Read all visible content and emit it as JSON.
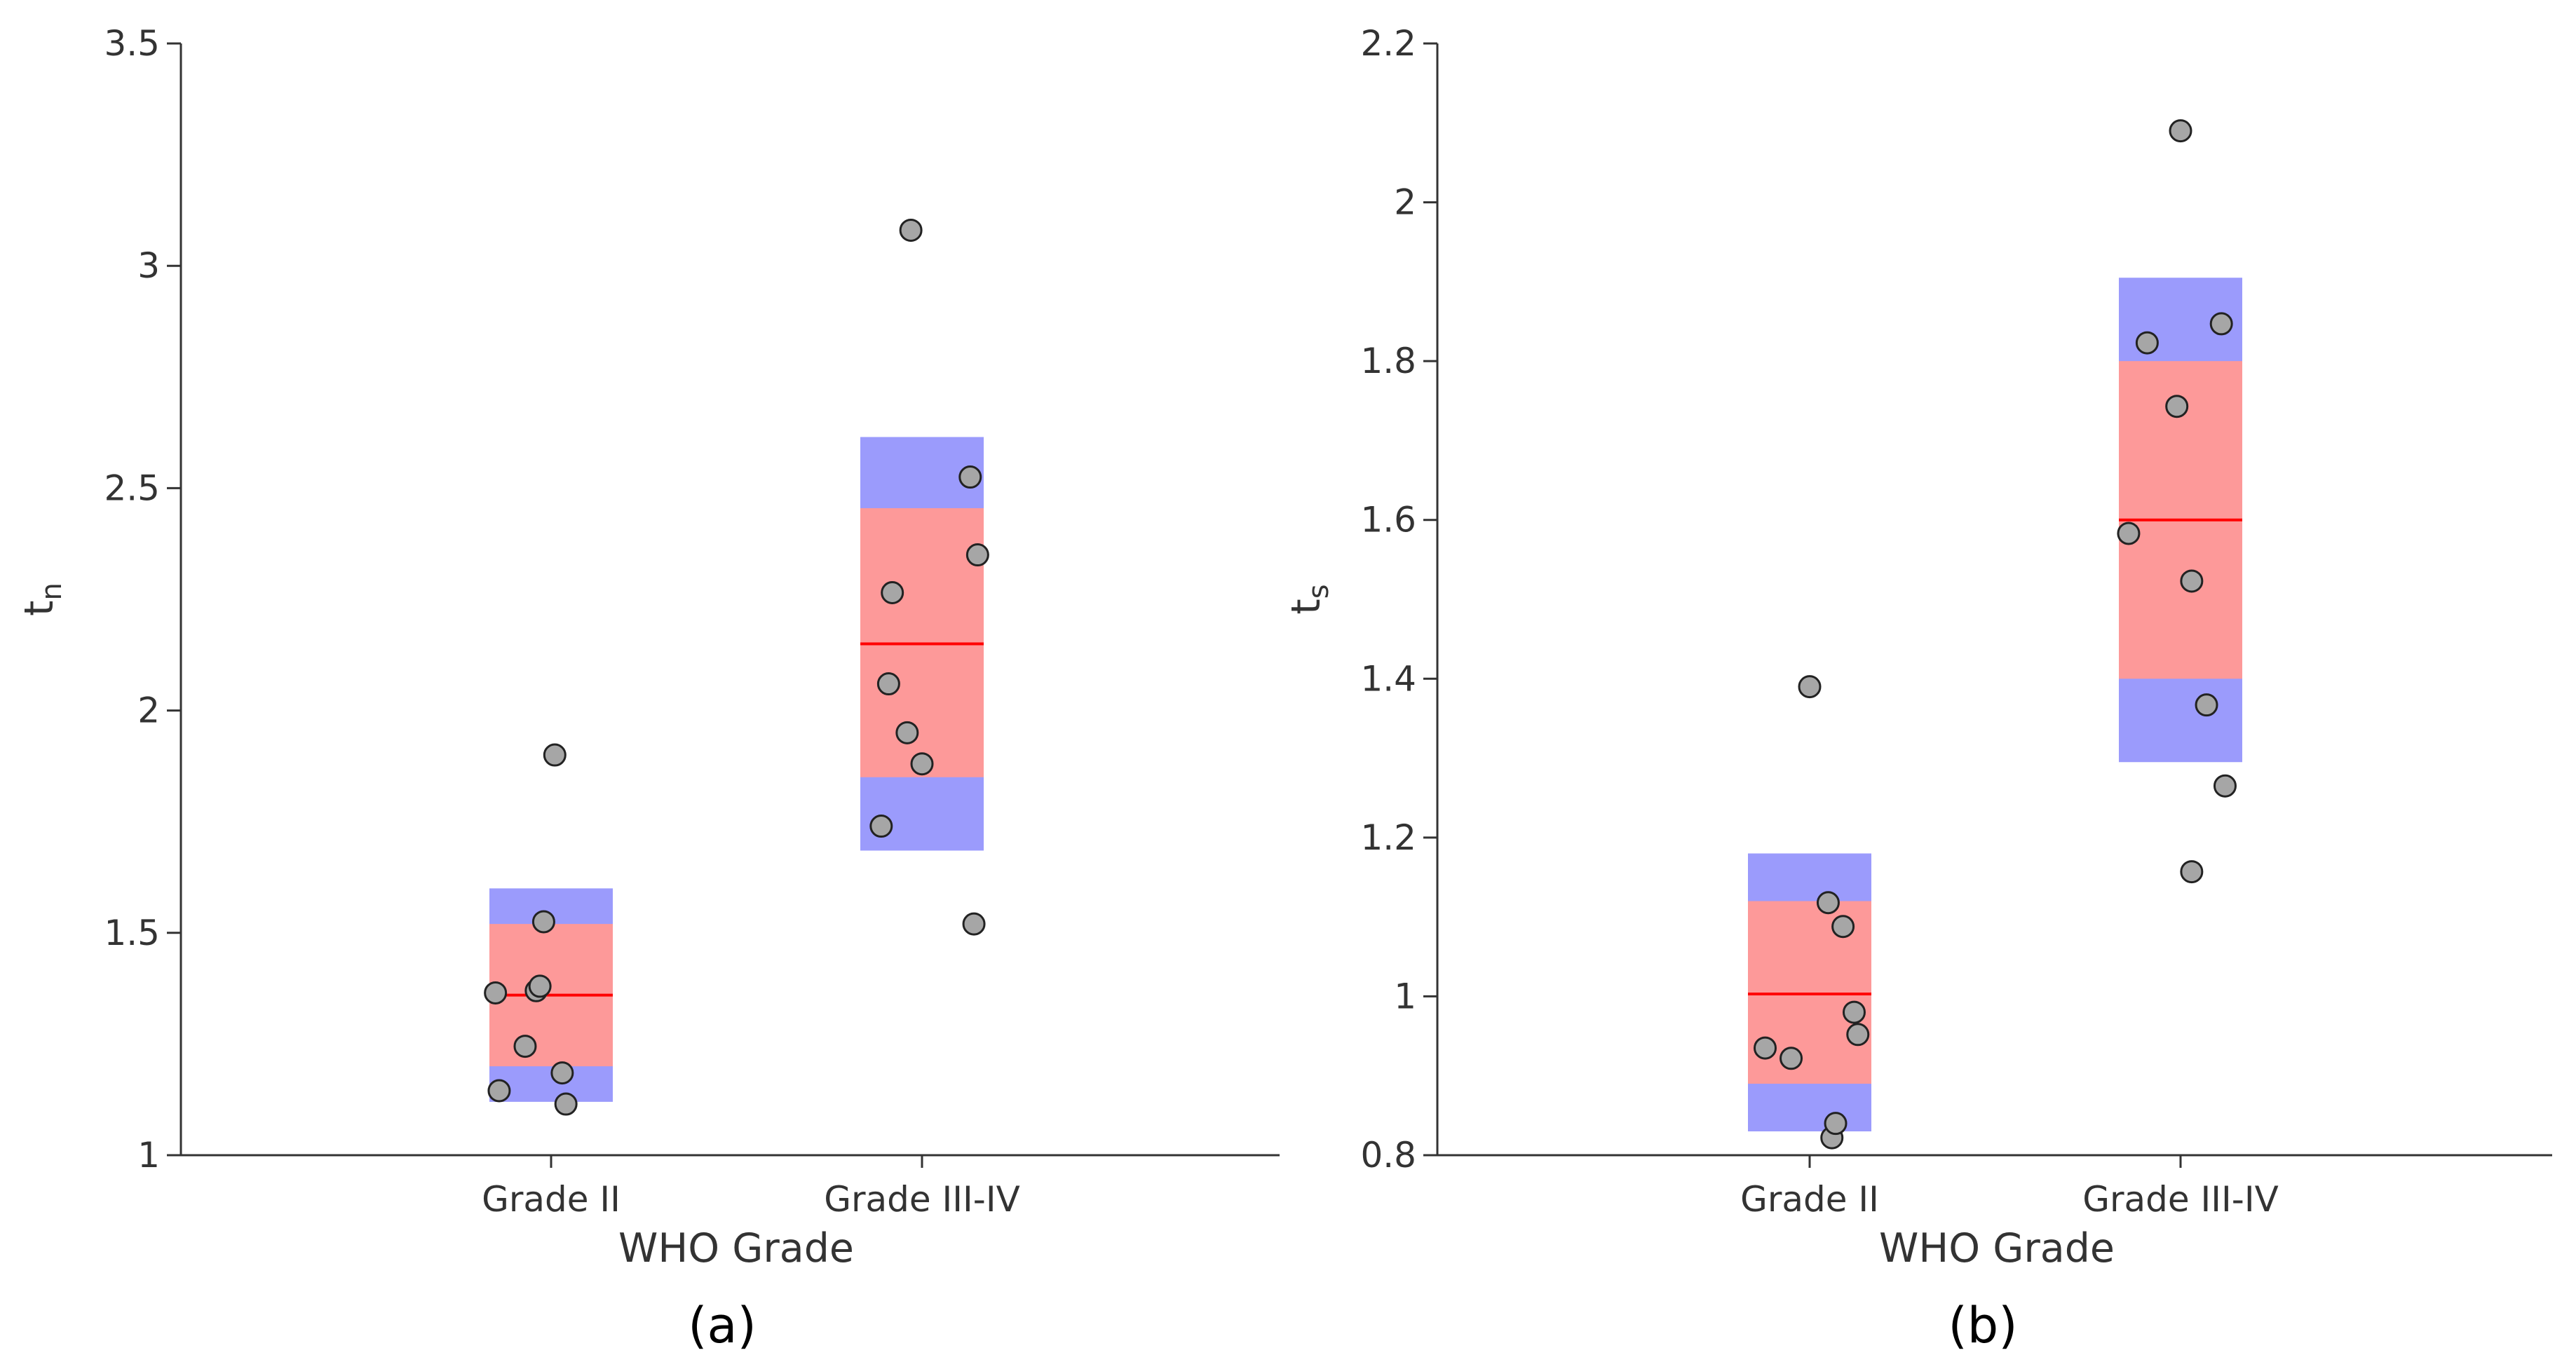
{
  "chart_data": [
    {
      "type": "scatter",
      "panel_label": "(a)",
      "xlabel": "WHO Grade",
      "ylabel_main": "t",
      "ylabel_sub": "n",
      "categories": [
        "Grade II",
        "Grade III-IV"
      ],
      "ylim": [
        1,
        3.5
      ],
      "yticks": [
        1,
        1.5,
        2,
        2.5,
        3,
        3.5
      ],
      "ytick_labels": [
        "1",
        "1.5",
        "2",
        "2.5",
        "3",
        "3.5"
      ],
      "groups": [
        {
          "category": "Grade II",
          "mean": 1.36,
          "ci": [
            1.2,
            1.52
          ],
          "sd": [
            1.12,
            1.6
          ],
          "points": [
            {
              "jitter": -0.15,
              "y": 1.365
            },
            {
              "jitter": -0.14,
              "y": 1.145
            },
            {
              "jitter": -0.07,
              "y": 1.245
            },
            {
              "jitter": -0.04,
              "y": 1.37
            },
            {
              "jitter": -0.03,
              "y": 1.38
            },
            {
              "jitter": -0.02,
              "y": 1.525
            },
            {
              "jitter": 0.01,
              "y": 1.9
            },
            {
              "jitter": 0.03,
              "y": 1.185
            },
            {
              "jitter": 0.04,
              "y": 1.115
            }
          ]
        },
        {
          "category": "Grade III-IV",
          "mean": 2.15,
          "ci": [
            1.85,
            2.455
          ],
          "sd": [
            1.685,
            2.615
          ],
          "points": [
            {
              "jitter": -0.11,
              "y": 1.74
            },
            {
              "jitter": -0.09,
              "y": 2.06
            },
            {
              "jitter": -0.08,
              "y": 2.265
            },
            {
              "jitter": -0.04,
              "y": 1.95
            },
            {
              "jitter": -0.03,
              "y": 3.08
            },
            {
              "jitter": 0.0,
              "y": 1.88
            },
            {
              "jitter": 0.13,
              "y": 2.525
            },
            {
              "jitter": 0.14,
              "y": 1.52
            },
            {
              "jitter": 0.15,
              "y": 2.35
            }
          ]
        }
      ]
    },
    {
      "type": "scatter",
      "panel_label": "(b)",
      "xlabel": "WHO Grade",
      "ylabel_main": "t",
      "ylabel_sub": "s",
      "categories": [
        "Grade II",
        "Grade III-IV"
      ],
      "ylim": [
        0.8,
        2.2
      ],
      "yticks": [
        0.8,
        1.0,
        1.2,
        1.4,
        1.6,
        1.8,
        2.0,
        2.2
      ],
      "ytick_labels": [
        "0.8",
        "1",
        "1.2",
        "1.4",
        "1.6",
        "1.8",
        "2",
        "2.2"
      ],
      "groups": [
        {
          "category": "Grade II",
          "mean": 1.003,
          "ci": [
            0.89,
            1.12
          ],
          "sd": [
            0.83,
            1.18
          ],
          "points": [
            {
              "jitter": -0.12,
              "y": 0.935
            },
            {
              "jitter": -0.05,
              "y": 0.922
            },
            {
              "jitter": 0.0,
              "y": 1.39
            },
            {
              "jitter": 0.05,
              "y": 1.118
            },
            {
              "jitter": 0.06,
              "y": 0.822
            },
            {
              "jitter": 0.07,
              "y": 0.84
            },
            {
              "jitter": 0.09,
              "y": 1.088
            },
            {
              "jitter": 0.12,
              "y": 0.98
            },
            {
              "jitter": 0.13,
              "y": 0.952
            }
          ]
        },
        {
          "category": "Grade III-IV",
          "mean": 1.6,
          "ci": [
            1.4,
            1.8
          ],
          "sd": [
            1.295,
            1.905
          ],
          "points": [
            {
              "jitter": -0.14,
              "y": 1.583
            },
            {
              "jitter": -0.09,
              "y": 1.823
            },
            {
              "jitter": -0.01,
              "y": 1.743
            },
            {
              "jitter": 0.0,
              "y": 2.09
            },
            {
              "jitter": 0.03,
              "y": 1.523
            },
            {
              "jitter": 0.03,
              "y": 1.157
            },
            {
              "jitter": 0.07,
              "y": 1.367
            },
            {
              "jitter": 0.11,
              "y": 1.847
            },
            {
              "jitter": 0.12,
              "y": 1.265
            }
          ]
        }
      ]
    }
  ]
}
